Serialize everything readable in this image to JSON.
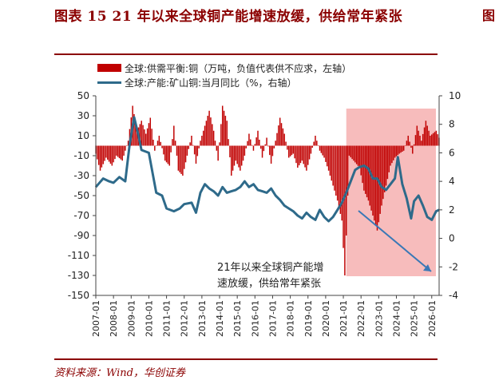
{
  "title": "图表 15   21 年以来全球铜产能增速放缓，供给常年紧张",
  "source": "资料来源：Wind，华创证券",
  "edge_fragment": "图",
  "chart_data": {
    "type": "bar+line",
    "legend": [
      {
        "name": "全球:供需平衡:铜（万吨，负值代表供不应求，左轴）",
        "kind": "bar",
        "color": "#c00000"
      },
      {
        "name": "全球:产能:矿山铜:当月同比（%，右轴）",
        "kind": "line",
        "color": "#2e6a8a"
      }
    ],
    "y_left": {
      "min": -150,
      "max": 50,
      "ticks": [
        50,
        30,
        10,
        -10,
        -30,
        -50,
        -70,
        -90,
        -110,
        -130,
        -150
      ]
    },
    "y_right": {
      "min": -4,
      "max": 10,
      "ticks": [
        10,
        8,
        6,
        4,
        2,
        0,
        -2,
        -4
      ]
    },
    "x_ticks": [
      "2007-01",
      "2008-01",
      "2009-01",
      "2010-01",
      "2011-01",
      "2012-01",
      "2013-01",
      "2014-01",
      "2015-01",
      "2016-01",
      "2017-01",
      "2018-01",
      "2019-01",
      "2020-01",
      "2021-01",
      "2022-01",
      "2023-01",
      "2024-01",
      "2025-01",
      "2026-01"
    ],
    "x_range": [
      "2007-01",
      "2026-06"
    ],
    "annotation": {
      "text_line1": "21年以来全球铜产能增",
      "text_line2": "速放缓，供给常年紧张"
    },
    "highlight_region": {
      "from": "2021-03",
      "to": "2026-06",
      "color": "#f4a6a6"
    },
    "balance_anchors": [
      [
        "2007-01",
        -8
      ],
      [
        "2007-04",
        -25
      ],
      [
        "2007-08",
        -12
      ],
      [
        "2007-12",
        -20
      ],
      [
        "2008-03",
        -10
      ],
      [
        "2008-07",
        -15
      ],
      [
        "2008-11",
        5
      ],
      [
        "2009-02",
        40
      ],
      [
        "2009-05",
        15
      ],
      [
        "2009-08",
        25
      ],
      [
        "2009-11",
        12
      ],
      [
        "2010-02",
        28
      ],
      [
        "2010-05",
        -5
      ],
      [
        "2010-08",
        10
      ],
      [
        "2010-12",
        -15
      ],
      [
        "2011-03",
        -20
      ],
      [
        "2011-06",
        20
      ],
      [
        "2011-09",
        -25
      ],
      [
        "2011-12",
        -30
      ],
      [
        "2012-03",
        -10
      ],
      [
        "2012-06",
        10
      ],
      [
        "2012-09",
        -18
      ],
      [
        "2012-12",
        5
      ],
      [
        "2013-03",
        20
      ],
      [
        "2013-06",
        35
      ],
      [
        "2013-09",
        15
      ],
      [
        "2013-12",
        -15
      ],
      [
        "2014-03",
        40
      ],
      [
        "2014-06",
        25
      ],
      [
        "2014-09",
        -30
      ],
      [
        "2014-12",
        -15
      ],
      [
        "2015-03",
        -25
      ],
      [
        "2015-06",
        -10
      ],
      [
        "2015-09",
        12
      ],
      [
        "2015-12",
        -5
      ],
      [
        "2016-03",
        15
      ],
      [
        "2016-06",
        -12
      ],
      [
        "2016-09",
        8
      ],
      [
        "2016-12",
        -18
      ],
      [
        "2017-03",
        5
      ],
      [
        "2017-06",
        28
      ],
      [
        "2017-09",
        12
      ],
      [
        "2017-12",
        -12
      ],
      [
        "2018-03",
        -8
      ],
      [
        "2018-06",
        -22
      ],
      [
        "2018-09",
        -15
      ],
      [
        "2018-12",
        -25
      ],
      [
        "2019-03",
        -8
      ],
      [
        "2019-06",
        10
      ],
      [
        "2019-09",
        -5
      ],
      [
        "2019-12",
        -12
      ],
      [
        "2020-03",
        -25
      ],
      [
        "2020-06",
        -40
      ],
      [
        "2020-09",
        -55
      ],
      [
        "2020-12",
        -75
      ],
      [
        "2021-02",
        -130
      ],
      [
        "2021-05",
        -10
      ],
      [
        "2021-08",
        -15
      ],
      [
        "2021-12",
        -22
      ],
      [
        "2022-03",
        -45
      ],
      [
        "2022-06",
        -55
      ],
      [
        "2022-09",
        -70
      ],
      [
        "2022-12",
        -85
      ],
      [
        "2023-03",
        -60
      ],
      [
        "2023-06",
        -40
      ],
      [
        "2023-09",
        -20
      ],
      [
        "2023-12",
        -12
      ],
      [
        "2024-03",
        -8
      ],
      [
        "2024-06",
        -5
      ],
      [
        "2024-09",
        10
      ],
      [
        "2024-12",
        -8
      ],
      [
        "2025-03",
        20
      ],
      [
        "2025-06",
        5
      ],
      [
        "2025-09",
        25
      ],
      [
        "2025-12",
        10
      ],
      [
        "2026-04",
        15
      ],
      [
        "2026-06",
        8
      ]
    ],
    "capacity_yoy": [
      [
        "2007-01",
        3.6
      ],
      [
        "2007-06",
        4.2
      ],
      [
        "2007-10",
        4.0
      ],
      [
        "2008-01",
        3.9
      ],
      [
        "2008-05",
        4.3
      ],
      [
        "2008-09",
        4.0
      ],
      [
        "2008-12",
        6.6
      ],
      [
        "2009-03",
        8.5
      ],
      [
        "2009-06",
        7.2
      ],
      [
        "2009-08",
        6.2
      ],
      [
        "2010-01",
        6.0
      ],
      [
        "2010-06",
        3.2
      ],
      [
        "2010-10",
        3.0
      ],
      [
        "2011-01",
        2.1
      ],
      [
        "2011-06",
        1.9
      ],
      [
        "2011-10",
        2.1
      ],
      [
        "2012-01",
        2.4
      ],
      [
        "2012-06",
        2.5
      ],
      [
        "2012-09",
        1.8
      ],
      [
        "2012-12",
        3.2
      ],
      [
        "2013-03",
        3.8
      ],
      [
        "2013-06",
        3.5
      ],
      [
        "2013-09",
        3.3
      ],
      [
        "2013-12",
        3.0
      ],
      [
        "2014-03",
        3.6
      ],
      [
        "2014-06",
        3.2
      ],
      [
        "2014-09",
        3.3
      ],
      [
        "2014-12",
        3.4
      ],
      [
        "2015-03",
        3.6
      ],
      [
        "2015-06",
        4.0
      ],
      [
        "2015-09",
        3.6
      ],
      [
        "2015-12",
        3.8
      ],
      [
        "2016-03",
        3.4
      ],
      [
        "2016-06",
        3.3
      ],
      [
        "2016-09",
        3.2
      ],
      [
        "2016-12",
        3.5
      ],
      [
        "2017-03",
        3.0
      ],
      [
        "2017-06",
        2.7
      ],
      [
        "2017-09",
        2.3
      ],
      [
        "2017-12",
        2.1
      ],
      [
        "2018-03",
        1.9
      ],
      [
        "2018-06",
        1.6
      ],
      [
        "2018-09",
        1.4
      ],
      [
        "2018-12",
        1.8
      ],
      [
        "2019-03",
        1.5
      ],
      [
        "2019-06",
        1.3
      ],
      [
        "2019-09",
        2.0
      ],
      [
        "2019-12",
        1.5
      ],
      [
        "2020-03",
        1.2
      ],
      [
        "2020-06",
        1.5
      ],
      [
        "2020-09",
        2.0
      ],
      [
        "2020-12",
        2.5
      ],
      [
        "2021-03",
        3.2
      ],
      [
        "2021-06",
        4.0
      ],
      [
        "2021-09",
        4.8
      ],
      [
        "2021-12",
        5.0
      ],
      [
        "2022-03",
        5.1
      ],
      [
        "2022-06",
        4.9
      ],
      [
        "2022-09",
        4.2
      ],
      [
        "2022-12",
        4.2
      ],
      [
        "2023-03",
        3.6
      ],
      [
        "2023-06",
        3.4
      ],
      [
        "2023-09",
        3.8
      ],
      [
        "2023-12",
        4.2
      ],
      [
        "2024-02",
        5.7
      ],
      [
        "2024-05",
        3.8
      ],
      [
        "2024-08",
        2.8
      ],
      [
        "2024-11",
        1.4
      ],
      [
        "2025-01",
        2.6
      ],
      [
        "2025-04",
        3.0
      ],
      [
        "2025-07",
        2.3
      ],
      [
        "2025-10",
        1.5
      ],
      [
        "2026-01",
        1.3
      ],
      [
        "2026-04",
        1.9
      ],
      [
        "2026-06",
        2.0
      ]
    ]
  }
}
